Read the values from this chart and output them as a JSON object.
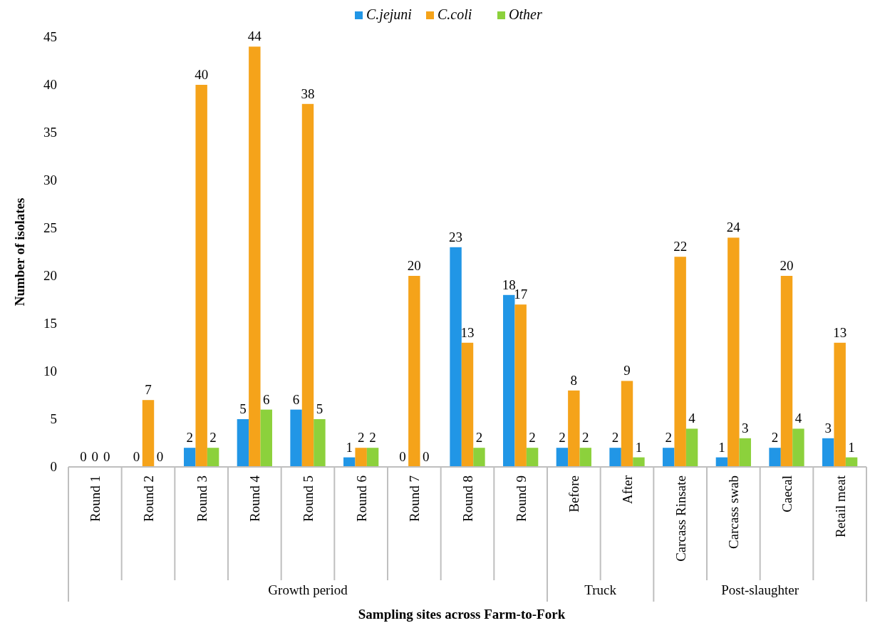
{
  "chart_data": {
    "type": "bar",
    "xlabel": "Sampling sites across Farm-to-Fork",
    "ylabel": "Number of isolates",
    "categories": [
      "Round 1",
      "Round 2",
      "Round 3",
      "Round 4",
      "Round 5",
      "Round 6",
      "Round 7",
      "Round 8",
      "Round 9",
      "Before",
      "After",
      "Carcass Rinsate",
      "Carcass swab",
      "Caecal",
      "Retail meat"
    ],
    "series": [
      {
        "name": "C.jejuni",
        "color": "#2196e6",
        "values": [
          0,
          0,
          2,
          5,
          6,
          1,
          0,
          23,
          18,
          2,
          2,
          2,
          1,
          2,
          3
        ]
      },
      {
        "name": "C.coli",
        "color": "#f5a31a",
        "values": [
          0,
          7,
          40,
          44,
          38,
          2,
          20,
          13,
          17,
          8,
          9,
          22,
          24,
          20,
          13
        ]
      },
      {
        "name": "Other",
        "color": "#8cd13c",
        "values": [
          0,
          0,
          2,
          6,
          5,
          2,
          0,
          2,
          2,
          2,
          1,
          4,
          3,
          4,
          1
        ]
      }
    ],
    "annotations": [
      "Growth period",
      "Truck",
      "Post-slaughter"
    ],
    "ylim": [
      0,
      45
    ],
    "yticks": [
      0,
      5,
      10,
      15,
      20,
      25,
      30,
      35,
      40,
      45
    ],
    "grid": false,
    "legend": "top",
    "data_labels": true
  }
}
